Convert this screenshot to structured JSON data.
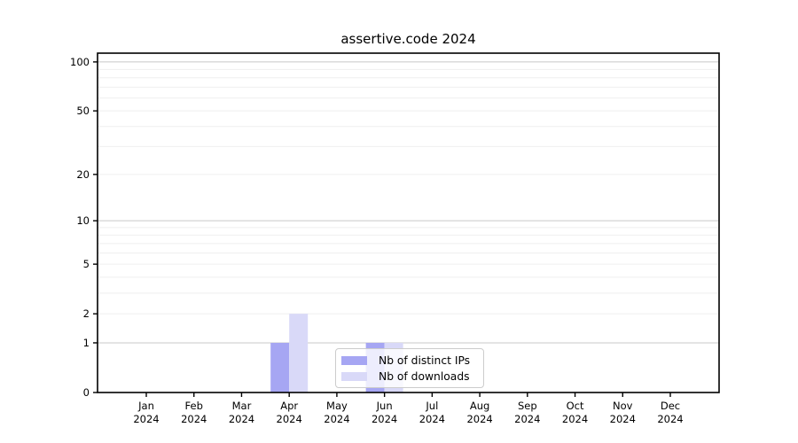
{
  "chart_data": {
    "type": "bar",
    "title": "assertive.code 2024",
    "xlabel": "",
    "ylabel": "",
    "categories": [
      "Jan 2024",
      "Feb 2024",
      "Mar 2024",
      "Apr 2024",
      "May 2024",
      "Jun 2024",
      "Jul 2024",
      "Aug 2024",
      "Sep 2024",
      "Oct 2024",
      "Nov 2024",
      "Dec 2024"
    ],
    "series": [
      {
        "name": "Nb of distinct IPs",
        "color": "#a6a6f3",
        "values": [
          0,
          0,
          0,
          1,
          0,
          1,
          0,
          0,
          0,
          0,
          0,
          0
        ]
      },
      {
        "name": "Nb of downloads",
        "color": "#d9d9f8",
        "values": [
          0,
          0,
          0,
          2,
          0,
          1,
          0,
          0,
          0,
          0,
          0,
          0
        ]
      }
    ],
    "yticks": [
      0,
      1,
      2,
      5,
      10,
      20,
      50,
      100
    ],
    "ylim": [
      0,
      113
    ],
    "scale": "log10(1+y)",
    "grid": {
      "on": true,
      "major_values": [
        1,
        10,
        100
      ],
      "minor_values": [
        2,
        3,
        4,
        5,
        6,
        7,
        8,
        9,
        20,
        30,
        40,
        50,
        60,
        70,
        80,
        90
      ],
      "major_color": "#c8c8c8",
      "minor_color": "#efefef"
    },
    "legend": {
      "position": "lower center",
      "border_color": "#cccccc"
    },
    "spine_color": "#000000"
  }
}
